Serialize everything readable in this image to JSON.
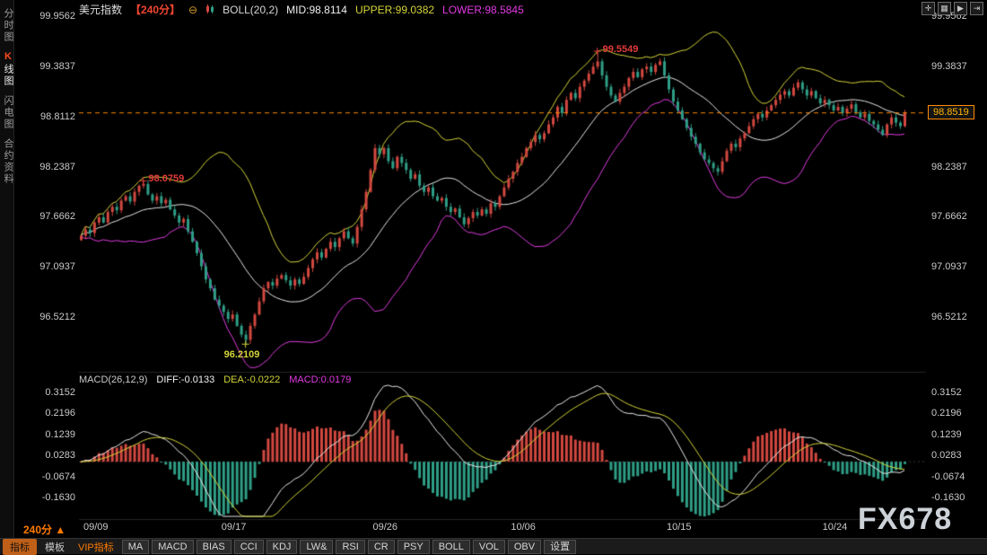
{
  "header": {
    "title": "美元指数",
    "period": "【240分】",
    "minus_icon": "⊖",
    "boll_label": "BOLL(20,2)",
    "mid_label": "MID:98.8114",
    "upper_label": "UPPER:99.0382",
    "lower_label": "LOWER:98.5845"
  },
  "window_controls": [
    "✛",
    "▦",
    "▶",
    "⇥"
  ],
  "sidebar": {
    "tabs": [
      {
        "label": "分时图",
        "active": false
      },
      {
        "label": "K线图",
        "active": true
      },
      {
        "label": "闪电图",
        "active": false
      },
      {
        "label": "合约资料",
        "active": false
      }
    ]
  },
  "price_axis": {
    "ticks": [
      "99.9562",
      "99.3837",
      "98.8112",
      "98.2387",
      "97.6662",
      "97.0937",
      "96.5212"
    ]
  },
  "macd_axis": {
    "ticks": [
      "0.3152",
      "0.2196",
      "0.1239",
      "0.0283",
      "-0.0674",
      "-0.1630"
    ]
  },
  "x_axis": {
    "labels": [
      {
        "text": "09/09",
        "index": 1
      },
      {
        "text": "09/17",
        "index": 32
      },
      {
        "text": "09/26",
        "index": 66
      },
      {
        "text": "10/06",
        "index": 97
      },
      {
        "text": "10/15",
        "index": 132
      },
      {
        "text": "10/24",
        "index": 167
      }
    ]
  },
  "price_tag": {
    "text": "98.8519",
    "value": 98.8519
  },
  "macd_header": {
    "label": "MACD(26,12,9)",
    "diff": "DIFF:-0.0133",
    "dea": "DEA:-0.0222",
    "macd": "MACD:0.0179"
  },
  "footer": {
    "period": "240分",
    "arrow": "▲",
    "watermark": "FX678"
  },
  "toolbar": {
    "items": [
      {
        "name": "indicator",
        "label": "指标",
        "style": "active"
      },
      {
        "name": "template",
        "label": "模板",
        "style": "plain"
      },
      {
        "name": "vip-indicator",
        "label": "VIP指标",
        "style": "vip"
      },
      {
        "name": "ma",
        "label": "MA",
        "style": "btn"
      },
      {
        "name": "macd",
        "label": "MACD",
        "style": "btn"
      },
      {
        "name": "bias",
        "label": "BIAS",
        "style": "btn"
      },
      {
        "name": "cci",
        "label": "CCI",
        "style": "btn"
      },
      {
        "name": "kdj",
        "label": "KDJ",
        "style": "btn"
      },
      {
        "name": "lwr",
        "label": "LW&",
        "style": "btn"
      },
      {
        "name": "rsi",
        "label": "RSI",
        "style": "btn"
      },
      {
        "name": "cr",
        "label": "CR",
        "style": "btn"
      },
      {
        "name": "psy",
        "label": "PSY",
        "style": "btn"
      },
      {
        "name": "boll",
        "label": "BOLL",
        "style": "btn"
      },
      {
        "name": "vol",
        "label": "VOL",
        "style": "btn"
      },
      {
        "name": "obv",
        "label": "OBV",
        "style": "btn"
      },
      {
        "name": "settings",
        "label": "设置",
        "style": "btn"
      }
    ]
  },
  "chart_data": {
    "type": "candlestick",
    "instrument": "美元指数",
    "interval": "240分",
    "y_range_main": [
      96.5212,
      99.9562
    ],
    "y_range_macd": [
      -0.163,
      0.3152
    ],
    "overlays": {
      "bollinger": {
        "period": 20,
        "mult": 2,
        "mid": 98.8114,
        "upper": 99.0382,
        "lower": 98.5845
      }
    },
    "indicator": {
      "type": "macd",
      "params": [
        26,
        12,
        9
      ],
      "diff": -0.0133,
      "dea": -0.0222,
      "macd": 0.0179
    },
    "open_first": 97.4,
    "last_price": 98.8519,
    "closes": [
      97.45,
      97.52,
      97.48,
      97.6,
      97.66,
      97.6,
      97.72,
      97.78,
      97.74,
      97.85,
      97.9,
      97.84,
      97.95,
      98.02,
      98.04,
      97.92,
      97.85,
      97.9,
      97.82,
      97.86,
      97.75,
      97.68,
      97.6,
      97.64,
      97.5,
      97.38,
      97.25,
      97.1,
      96.95,
      96.85,
      96.72,
      96.65,
      96.58,
      96.5,
      96.55,
      96.42,
      96.32,
      96.26,
      96.42,
      96.55,
      96.7,
      96.85,
      96.92,
      96.88,
      96.96,
      97.0,
      96.94,
      96.88,
      96.95,
      96.9,
      96.98,
      97.08,
      97.18,
      97.26,
      97.2,
      97.3,
      97.38,
      97.32,
      97.42,
      97.5,
      97.42,
      97.36,
      97.55,
      97.75,
      97.95,
      98.2,
      98.45,
      98.38,
      98.45,
      98.3,
      98.22,
      98.35,
      98.28,
      98.2,
      98.1,
      98.15,
      98.02,
      97.95,
      98.0,
      97.9,
      97.85,
      97.88,
      97.78,
      97.72,
      97.76,
      97.66,
      97.58,
      97.65,
      97.72,
      97.68,
      97.75,
      97.7,
      97.82,
      97.78,
      97.9,
      98.0,
      98.1,
      98.18,
      98.28,
      98.35,
      98.45,
      98.52,
      98.6,
      98.55,
      98.62,
      98.72,
      98.8,
      98.92,
      98.85,
      99.0,
      99.08,
      99.02,
      99.15,
      99.22,
      99.3,
      99.38,
      99.44,
      99.28,
      99.15,
      99.05,
      98.98,
      99.08,
      99.15,
      99.25,
      99.32,
      99.26,
      99.35,
      99.38,
      99.32,
      99.4,
      99.44,
      99.28,
      99.12,
      98.98,
      98.88,
      98.78,
      98.68,
      98.58,
      98.5,
      98.4,
      98.32,
      98.28,
      98.22,
      98.18,
      98.3,
      98.42,
      98.5,
      98.46,
      98.56,
      98.62,
      98.7,
      98.78,
      98.84,
      98.8,
      98.88,
      98.94,
      99.0,
      99.06,
      99.1,
      99.05,
      99.14,
      99.2,
      99.12,
      99.05,
      99.1,
      99.02,
      98.96,
      99.0,
      98.94,
      98.88,
      98.92,
      98.85,
      98.9,
      98.95,
      98.86,
      98.8,
      98.84,
      98.76,
      98.72,
      98.66,
      98.6,
      98.72,
      98.8,
      98.74,
      98.7,
      98.8519
    ],
    "annotations": [
      {
        "index": 14,
        "value": 98.0759,
        "kind": "high",
        "label": "98.0759",
        "color": "#e23b3b"
      },
      {
        "index": 37,
        "value": 96.2109,
        "kind": "low",
        "label": "96.2109",
        "color": "#d4d43a"
      },
      {
        "index": 116,
        "value": 99.5549,
        "kind": "high",
        "label": "99.5549",
        "color": "#e23b3b"
      }
    ],
    "colors": {
      "up": "#d24840",
      "down": "#2f9e86",
      "boll_upper": "#d4d43a",
      "boll_mid": "#e6e6e6",
      "boll_lower": "#e03ce0",
      "macd_diff": "#eaeaea",
      "macd_dea": "#d4d43a",
      "hist_pos": "#d24840",
      "hist_neg": "#2f9e86",
      "last_line": "#ff8a00"
    }
  }
}
